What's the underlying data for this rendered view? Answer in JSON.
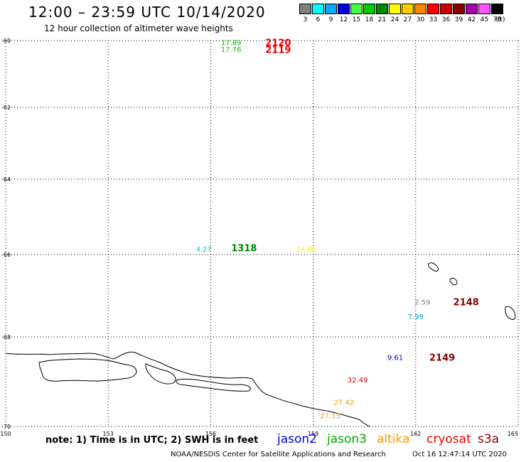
{
  "header": {
    "title": "12:00 – 23:59 UTC 10/14/2020",
    "subtitle": "12 hour collection of altimeter wave heights"
  },
  "legend": {
    "unit": "(ft)",
    "items": [
      {
        "label": "3",
        "color": "#808080"
      },
      {
        "label": "6",
        "color": "#00ffff"
      },
      {
        "label": "9",
        "color": "#00aaff"
      },
      {
        "label": "12",
        "color": "#0000dd"
      },
      {
        "label": "15",
        "color": "#44ff44"
      },
      {
        "label": "18",
        "color": "#00cc00"
      },
      {
        "label": "21",
        "color": "#008800"
      },
      {
        "label": "24",
        "color": "#ffff00"
      },
      {
        "label": "27",
        "color": "#ffcc00"
      },
      {
        "label": "30",
        "color": "#ff8800"
      },
      {
        "label": "33",
        "color": "#ff0000"
      },
      {
        "label": "36",
        "color": "#cc0000"
      },
      {
        "label": "39",
        "color": "#880000"
      },
      {
        "label": "42",
        "color": "#aa00aa"
      },
      {
        "label": "45",
        "color": "#ff55ff"
      },
      {
        "label": "70",
        "color": "#000000"
      }
    ]
  },
  "axes": {
    "lon_labels": [
      "150",
      "153",
      "156",
      "159",
      "162",
      "165"
    ],
    "lon_values": [
      150,
      153,
      156,
      159,
      162,
      165
    ],
    "lat_labels": [
      "-60",
      "-62",
      "-64",
      "-66",
      "-68",
      "-70"
    ],
    "lat_values": [
      -60,
      -62,
      -64,
      -66,
      -68,
      -70
    ]
  },
  "observations": [
    {
      "lon": 156.6,
      "lat": -60.05,
      "swh": "17.89",
      "color": "#00aa00"
    },
    {
      "lon": 156.6,
      "lat": -60.25,
      "swh": "17.76",
      "color": "#00cc00"
    },
    {
      "lon": 155.8,
      "lat": -65.85,
      "swh": "4.27",
      "color": "#00cccc"
    },
    {
      "lon": 158.8,
      "lat": -65.85,
      "swh": "24.80",
      "color": "#ffee00"
    },
    {
      "lon": 162.2,
      "lat": -67.15,
      "swh": "2.59",
      "color": "#808080"
    },
    {
      "lon": 162.0,
      "lat": -67.5,
      "swh": "7.99",
      "color": "#00aacc"
    },
    {
      "lon": 161.4,
      "lat": -68.45,
      "swh": "9.61",
      "color": "#0000cc"
    },
    {
      "lon": 160.3,
      "lat": -68.95,
      "swh": "32.49",
      "color": "#dd0000"
    },
    {
      "lon": 159.9,
      "lat": -69.45,
      "swh": "27.42",
      "color": "#ff9900"
    },
    {
      "lon": 159.5,
      "lat": -69.75,
      "swh": "27.15",
      "color": "#ff9900"
    }
  ],
  "passes": [
    {
      "lon": 157.6,
      "lat": -60.05,
      "label": "2120",
      "color": "#ee0000"
    },
    {
      "lon": 157.6,
      "lat": -60.27,
      "label": "2119",
      "color": "#ee0000"
    },
    {
      "lon": 156.6,
      "lat": -65.82,
      "label": "1318",
      "color": "#008800"
    },
    {
      "lon": 163.1,
      "lat": -67.15,
      "label": "2148",
      "color": "#880000"
    },
    {
      "lon": 162.4,
      "lat": -68.45,
      "label": "2149",
      "color": "#880000"
    }
  ],
  "satellites": [
    {
      "name": "jason2",
      "color": "#0000dd"
    },
    {
      "name": "jason3",
      "color": "#00aa00"
    },
    {
      "name": "altika",
      "color": "#ff9900"
    },
    {
      "name": "cryosat",
      "color": "#ee0000"
    },
    {
      "name": "s3a",
      "color": "#880000"
    }
  ],
  "note": "note:  1) Time is in UTC;  2) SWH is in feet",
  "footer": {
    "credit": "NOAA/NESDIS Center for Satellite Applications and Research",
    "timestamp": "Oct 16 12:47:14 UTC 2020"
  }
}
